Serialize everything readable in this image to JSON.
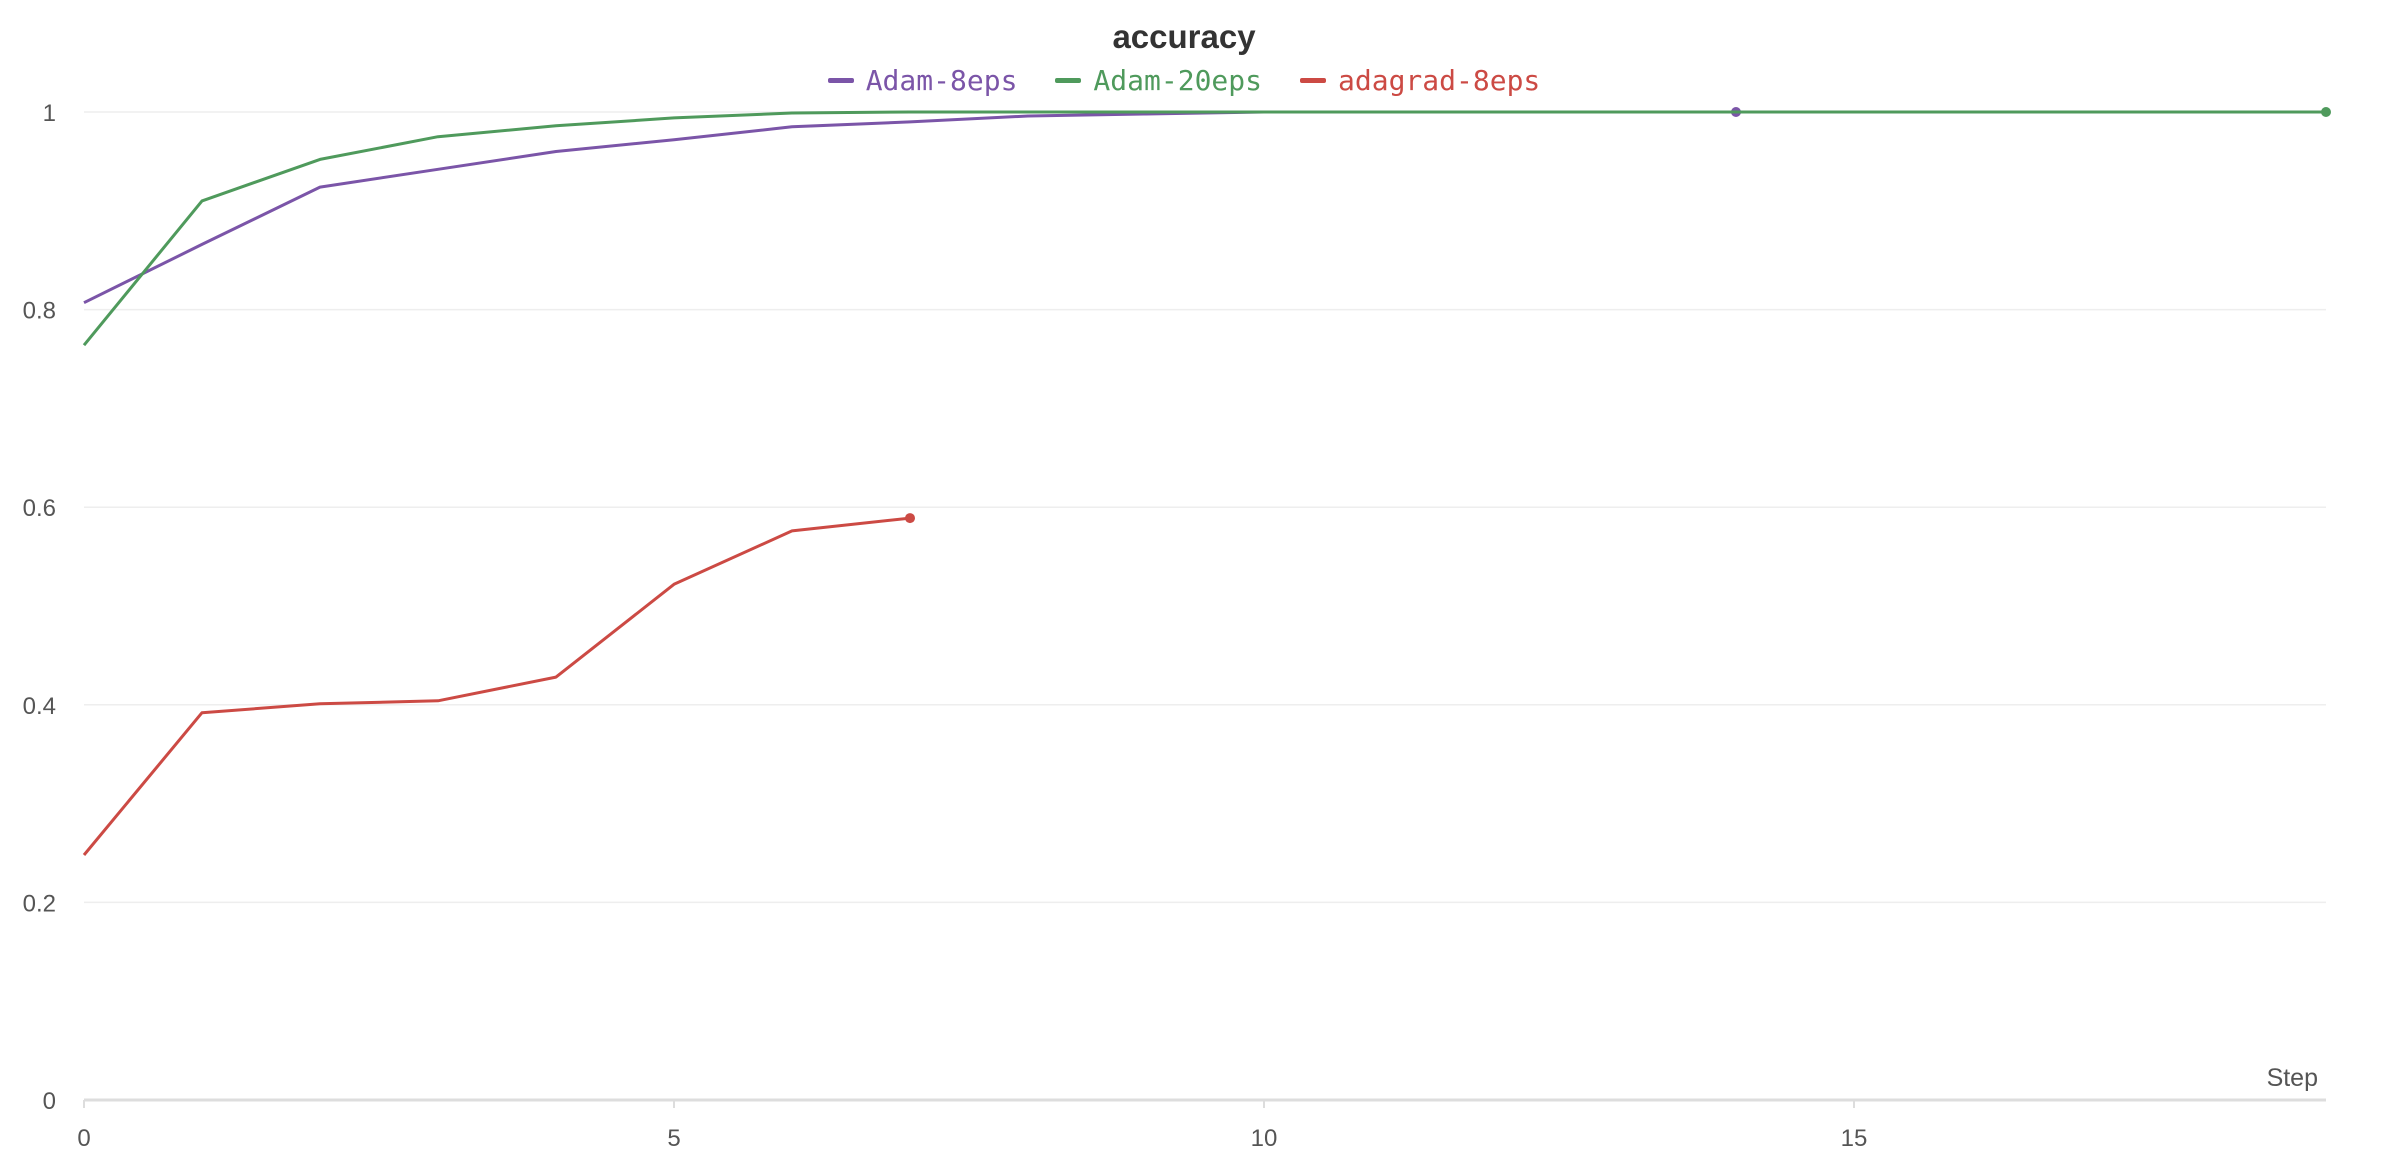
{
  "chart_data": {
    "type": "line",
    "title": "accuracy",
    "xlabel": "Step",
    "ylabel": "",
    "xlim": [
      0,
      19
    ],
    "ylim": [
      0,
      1
    ],
    "x_ticks": [
      0,
      5,
      10,
      15
    ],
    "y_ticks": [
      0,
      0.2,
      0.4,
      0.6,
      0.8,
      1
    ],
    "x_tick_labels": [
      "0",
      "5",
      "10",
      "15"
    ],
    "y_tick_labels": [
      "0",
      "0.2",
      "0.4",
      "0.6",
      "0.8",
      "1"
    ],
    "grid": true,
    "legend_position": "top-center",
    "series": [
      {
        "name": "Adam-8eps",
        "color": "#7b55a8",
        "x": [
          0,
          1,
          2,
          3,
          4,
          5,
          6,
          7,
          8,
          9,
          10,
          11,
          12,
          13,
          14
        ],
        "values": [
          0.807,
          0.866,
          0.924,
          0.942,
          0.96,
          0.972,
          0.985,
          0.99,
          0.996,
          0.998,
          1.0,
          1.0,
          1.0,
          1.0,
          1.0
        ]
      },
      {
        "name": "Adam-20eps",
        "color": "#4f9a5c",
        "x": [
          0,
          1,
          2,
          3,
          4,
          5,
          6,
          7,
          8,
          9,
          10,
          11,
          12,
          13,
          14,
          15,
          16,
          17,
          18,
          19
        ],
        "values": [
          0.764,
          0.91,
          0.952,
          0.975,
          0.986,
          0.994,
          0.999,
          1.0,
          1.0,
          1.0,
          1.0,
          1.0,
          1.0,
          1.0,
          1.0,
          1.0,
          1.0,
          1.0,
          1.0,
          1.0
        ]
      },
      {
        "name": "adagrad-8eps",
        "color": "#cc4a44",
        "x": [
          0,
          1,
          2,
          3,
          4,
          5,
          6,
          7
        ],
        "values": [
          0.248,
          0.392,
          0.401,
          0.404,
          0.428,
          0.522,
          0.576,
          0.589
        ]
      }
    ]
  }
}
